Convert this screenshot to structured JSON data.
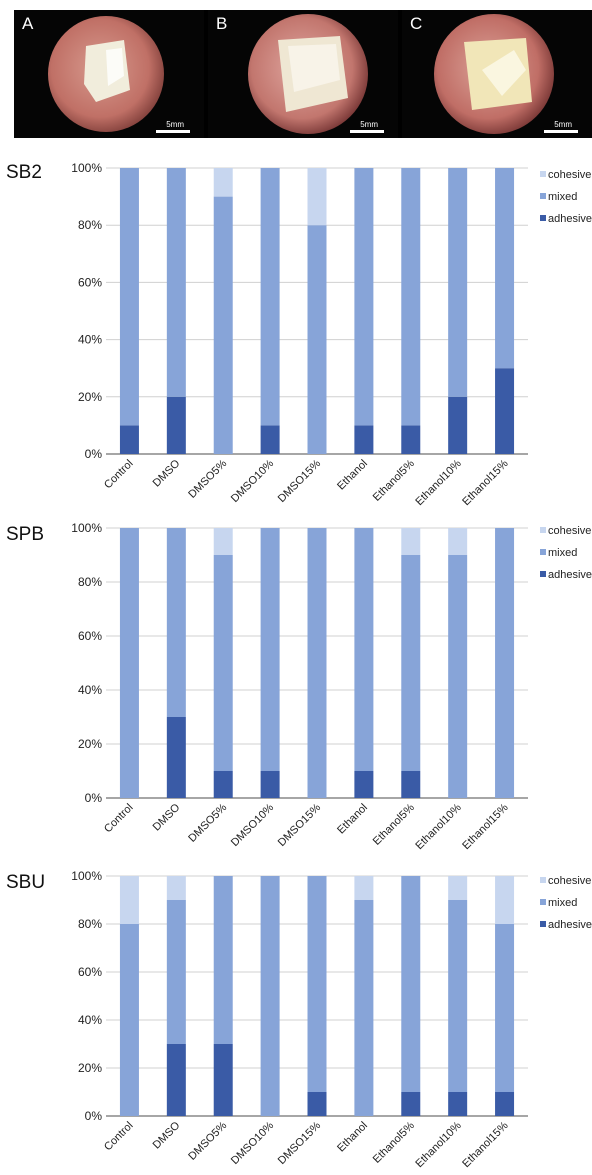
{
  "photos": [
    {
      "letter": "A",
      "scale": "5mm"
    },
    {
      "letter": "B",
      "scale": "5mm"
    },
    {
      "letter": "C",
      "scale": "5mm"
    }
  ],
  "colors": {
    "cohesive": "#c7d6ef",
    "mixed": "#87a4d8",
    "adhesive": "#3a5ba6"
  },
  "chart_data": [
    {
      "type": "bar",
      "stacked": true,
      "title": "SB2",
      "categories": [
        "Control",
        "DMSO",
        "DMSO5%",
        "DMSO10%",
        "DMSO15%",
        "Ethanol",
        "Ethanol5%",
        "Ethanol10%",
        "Ethanol15%"
      ],
      "series": [
        {
          "name": "adhesive",
          "values": [
            10,
            20,
            0,
            10,
            0,
            10,
            10,
            20,
            30
          ]
        },
        {
          "name": "mixed",
          "values": [
            90,
            80,
            90,
            90,
            80,
            90,
            90,
            80,
            70
          ]
        },
        {
          "name": "cohesive",
          "values": [
            0,
            0,
            10,
            0,
            20,
            0,
            0,
            0,
            0
          ]
        }
      ],
      "yticks": [
        "0%",
        "20%",
        "40%",
        "60%",
        "80%",
        "100%"
      ],
      "ylim": [
        0,
        100
      ],
      "legend": "right",
      "legend_labels": [
        "cohesive",
        "mixed",
        "adhesive"
      ]
    },
    {
      "type": "bar",
      "stacked": true,
      "title": "SPB",
      "categories": [
        "Control",
        "DMSO",
        "DMSO5%",
        "DMSO10%",
        "DMSO15%",
        "Ethanol",
        "Ethanol5%",
        "Ethanol10%",
        "Ethanol15%"
      ],
      "series": [
        {
          "name": "adhesive",
          "values": [
            0,
            30,
            10,
            10,
            0,
            10,
            10,
            0,
            0
          ]
        },
        {
          "name": "mixed",
          "values": [
            100,
            70,
            80,
            90,
            100,
            90,
            80,
            90,
            100
          ]
        },
        {
          "name": "cohesive",
          "values": [
            0,
            0,
            10,
            0,
            0,
            0,
            10,
            10,
            0
          ]
        }
      ],
      "yticks": [
        "0%",
        "20%",
        "40%",
        "60%",
        "80%",
        "100%"
      ],
      "ylim": [
        0,
        100
      ],
      "legend": "right",
      "legend_labels": [
        "cohesive",
        "mixed",
        "adhesive"
      ]
    },
    {
      "type": "bar",
      "stacked": true,
      "title": "SBU",
      "categories": [
        "Control",
        "DMSO",
        "DMSO5%",
        "DMSO10%",
        "DMSO15%",
        "Ethanol",
        "Ethanol5%",
        "Ethanol10%",
        "Ethanol15%"
      ],
      "series": [
        {
          "name": "adhesive",
          "values": [
            0,
            30,
            30,
            0,
            10,
            0,
            10,
            10,
            10
          ]
        },
        {
          "name": "mixed",
          "values": [
            80,
            60,
            70,
            100,
            90,
            90,
            90,
            80,
            70
          ]
        },
        {
          "name": "cohesive",
          "values": [
            20,
            10,
            0,
            0,
            0,
            10,
            0,
            10,
            20
          ]
        }
      ],
      "yticks": [
        "0%",
        "20%",
        "40%",
        "60%",
        "80%",
        "100%"
      ],
      "ylim": [
        0,
        100
      ],
      "legend": "right",
      "legend_labels": [
        "cohesive",
        "mixed",
        "adhesive"
      ]
    }
  ]
}
